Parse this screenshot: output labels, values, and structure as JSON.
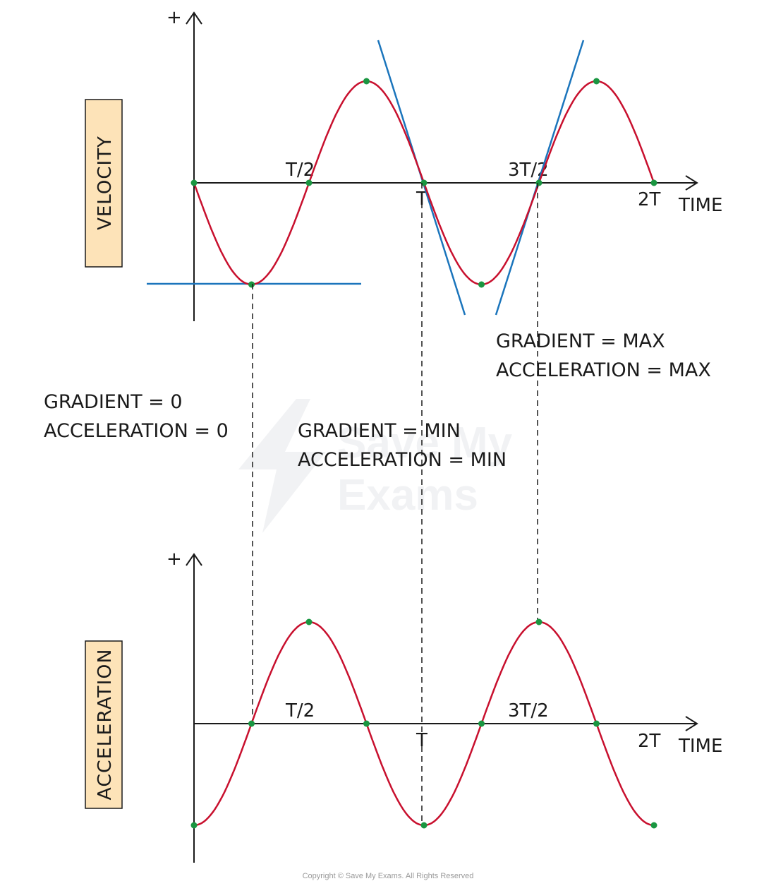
{
  "colors": {
    "curve": "#c8102e",
    "tangent": "#1b75bc",
    "point": "#1a9641",
    "axis": "#1a1a1a",
    "label_box": "#fde3b8"
  },
  "watermark": {
    "line1": "Save My",
    "line2": "Exams"
  },
  "copyright": "Copyright © Save My Exams. All Rights Reserved",
  "annotations": {
    "zero": {
      "line1": "GRADIENT = 0",
      "line2": "ACCELERATION = 0"
    },
    "min": {
      "line1": "GRADIENT = MIN",
      "line2": "ACCELERATION = MIN"
    },
    "max": {
      "line1": "GRADIENT = MAX",
      "line2": "ACCELERATION = MAX"
    }
  },
  "chart_data": [
    {
      "type": "line",
      "ylabel": "VELOCITY",
      "xlabel": "TIME",
      "y_positive_label": "+",
      "tick_labels": [
        "T/2",
        "T",
        "3T/2",
        "2T"
      ],
      "x_unit": "T",
      "x_range": [
        0,
        2
      ],
      "y_range": [
        -1,
        1
      ],
      "function": "-sin(2πt/T)",
      "x": [
        0,
        0.25,
        0.5,
        0.75,
        1,
        1.25,
        1.5,
        1.75,
        2
      ],
      "y": [
        0,
        -1,
        0,
        1,
        0,
        -1,
        0,
        1,
        0
      ],
      "marked_points": [
        [
          0,
          0
        ],
        [
          0.25,
          -1
        ],
        [
          0.5,
          0
        ],
        [
          0.75,
          1
        ],
        [
          1,
          0
        ],
        [
          1.25,
          -1
        ],
        [
          1.5,
          0
        ],
        [
          1.75,
          1
        ],
        [
          2,
          0
        ]
      ],
      "tangents": [
        {
          "at": 0.25,
          "gradient": "0"
        },
        {
          "at": 1,
          "gradient": "MIN"
        },
        {
          "at": 1.5,
          "gradient": "MAX"
        }
      ]
    },
    {
      "type": "line",
      "ylabel": "ACCELERATION",
      "xlabel": "TIME",
      "y_positive_label": "+",
      "tick_labels": [
        "T/2",
        "T",
        "3T/2",
        "2T"
      ],
      "x_unit": "T",
      "x_range": [
        0,
        2
      ],
      "y_range": [
        -1,
        1
      ],
      "function": "-cos(2πt/T)",
      "x": [
        0,
        0.25,
        0.5,
        0.75,
        1,
        1.25,
        1.5,
        1.75,
        2
      ],
      "y": [
        -1,
        0,
        1,
        0,
        -1,
        0,
        1,
        0,
        -1
      ],
      "marked_points": [
        [
          0,
          -1
        ],
        [
          0.25,
          0
        ],
        [
          0.5,
          1
        ],
        [
          0.75,
          0
        ],
        [
          1,
          -1
        ],
        [
          1.25,
          0
        ],
        [
          1.5,
          1
        ],
        [
          1.75,
          0
        ],
        [
          2,
          -1
        ]
      ]
    }
  ]
}
